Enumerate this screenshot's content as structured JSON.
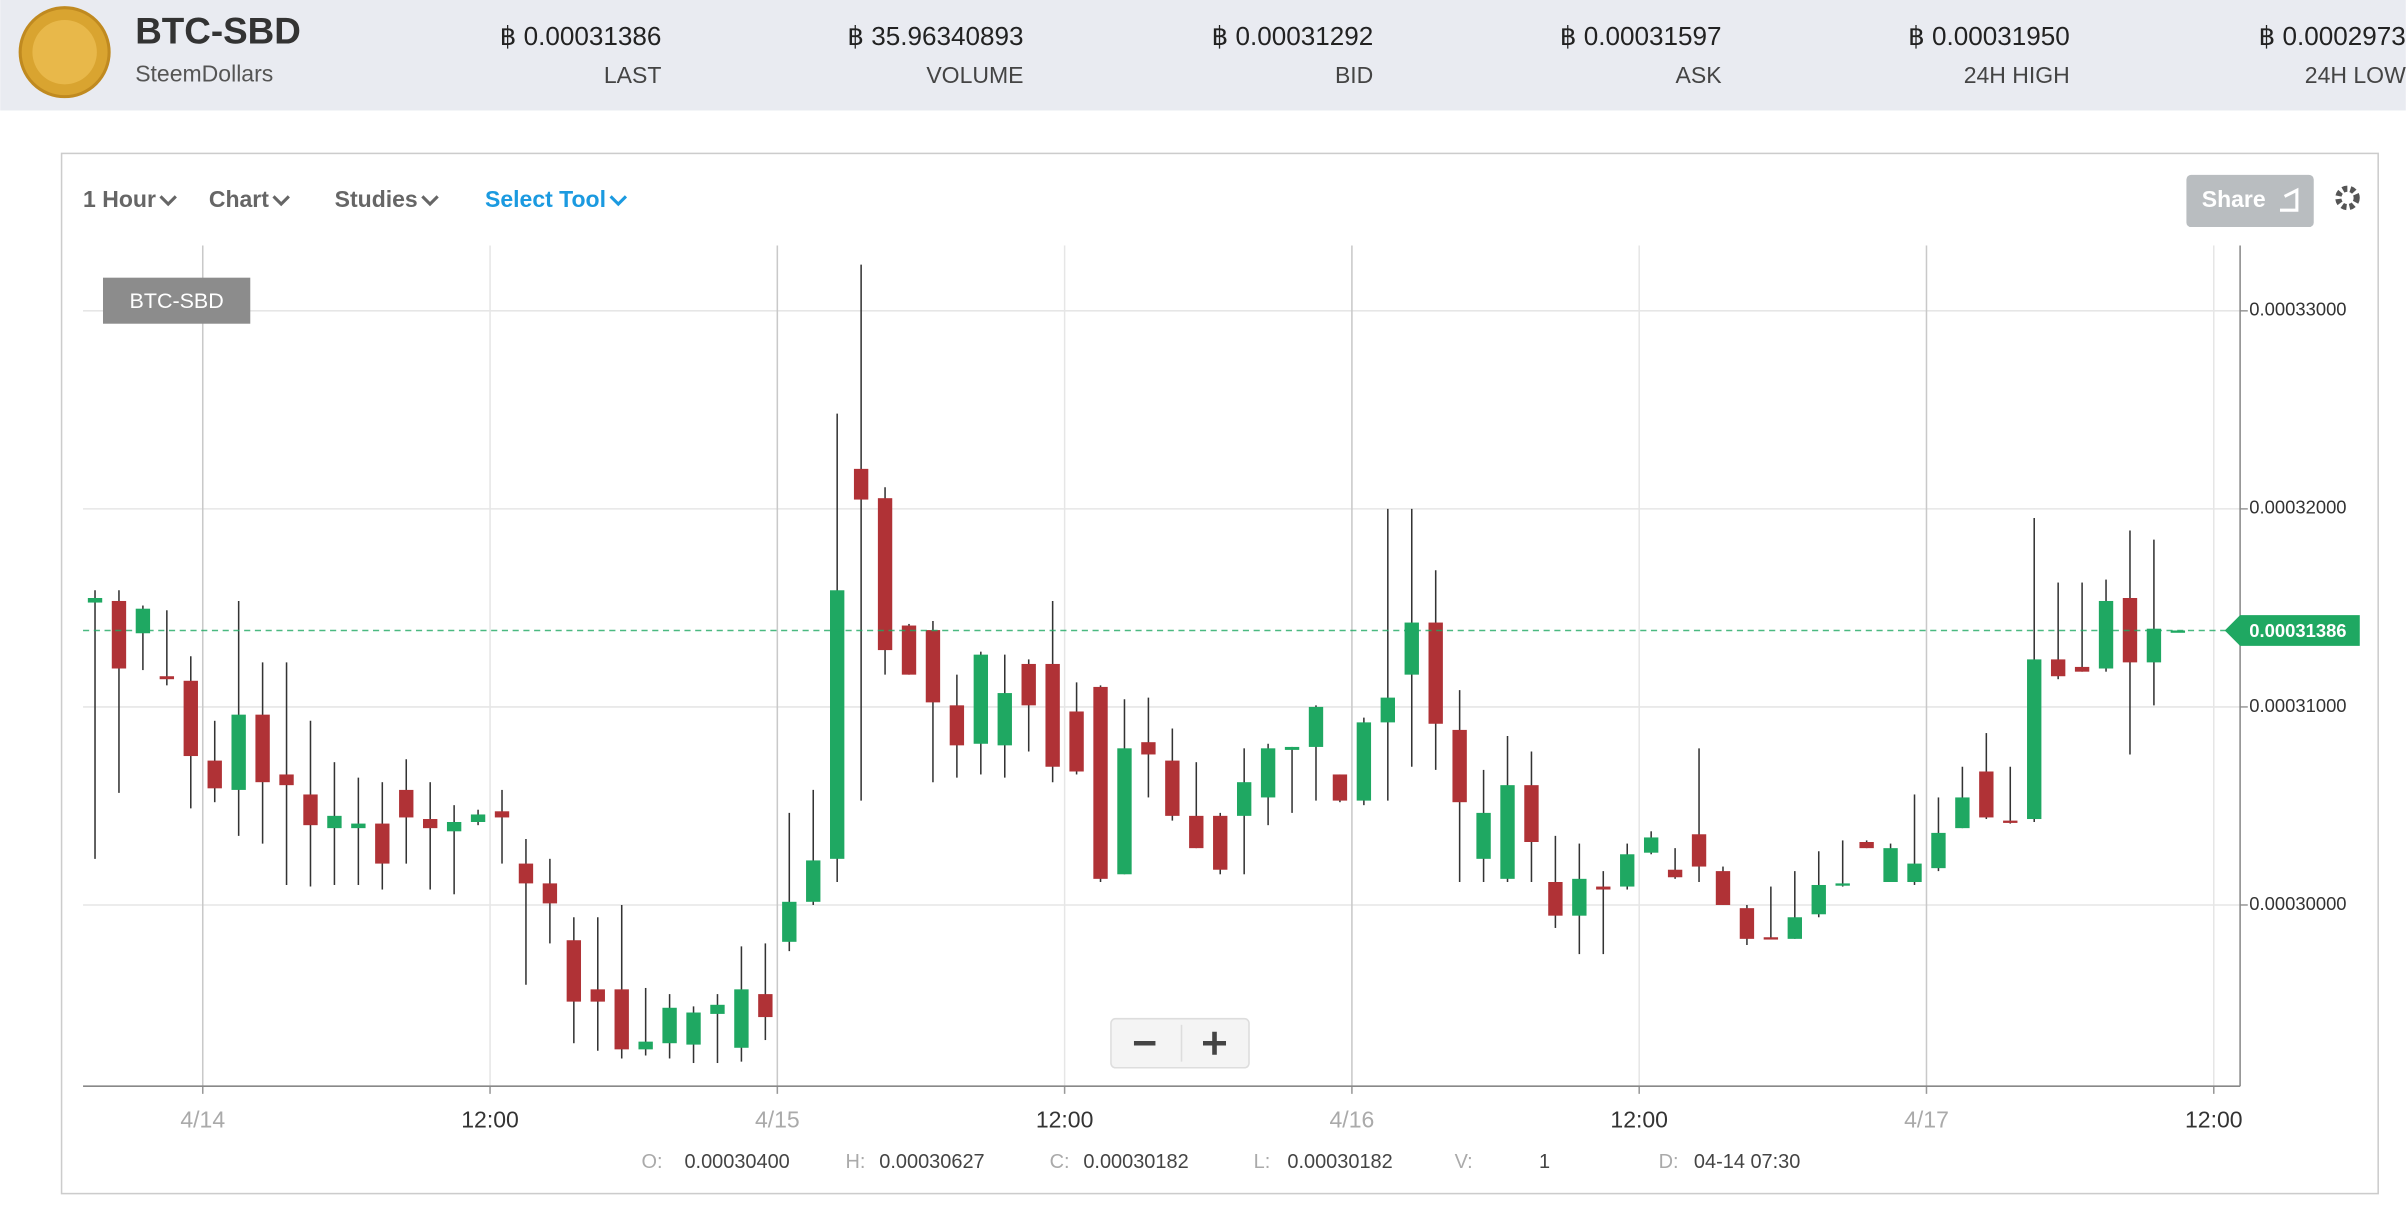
{
  "header": {
    "pair": "BTC-SBD",
    "name": "SteemDollars",
    "stats": [
      {
        "value": "฿ 0.00031386",
        "label": "LAST"
      },
      {
        "value": "฿ 35.96340893",
        "label": "VOLUME"
      },
      {
        "value": "฿ 0.00031292",
        "label": "BID"
      },
      {
        "value": "฿ 0.00031597",
        "label": "ASK"
      },
      {
        "value": "฿ 0.00031950",
        "label": "24H HIGH"
      },
      {
        "value": "฿ 0.0002973",
        "label": "24H LOW"
      }
    ]
  },
  "toolbar": {
    "items": [
      "1 Hour",
      "Chart",
      "Studies",
      "Select Tool"
    ],
    "share": "Share"
  },
  "legend_box": "BTC-SBD",
  "info": [
    {
      "label": "O:",
      "value": "0.00030400"
    },
    {
      "label": "H:",
      "value": "0.00030627"
    },
    {
      "label": "C:",
      "value": "0.00030182"
    },
    {
      "label": "L:",
      "value": "0.00030182"
    },
    {
      "label": "V:",
      "value": "1"
    },
    {
      "label": "D:",
      "value": "04-14 07:30"
    }
  ],
  "chart_data": {
    "type": "candlestick",
    "up_color": "#1fa862",
    "down_color": "#b03236",
    "last_price": 0.00031386,
    "last_color": "#1fa862",
    "grid": true,
    "xlim": [
      -0.5,
      89.6
    ],
    "ylim": [
      0.00029085,
      0.0003333
    ],
    "xticks": [
      {
        "value": 4.5,
        "label": "4/14"
      },
      {
        "value": 16.5,
        "label": "12:00"
      },
      {
        "value": 28.5,
        "label": "4/15"
      },
      {
        "value": 40.5,
        "label": "12:00"
      },
      {
        "value": 52.5,
        "label": "4/16"
      },
      {
        "value": 64.5,
        "label": "12:00"
      },
      {
        "value": 76.5,
        "label": "4/17"
      },
      {
        "value": 88.5,
        "label": "12:00"
      }
    ],
    "yticks": [
      {
        "value": 0.0003,
        "label": "0.00030000"
      },
      {
        "value": 0.00031,
        "label": "0.00031000"
      },
      {
        "value": 0.00032,
        "label": "0.00032000"
      },
      {
        "value": 0.00033,
        "label": "0.00033000"
      }
    ],
    "x": [
      0,
      1,
      2,
      3,
      4,
      5,
      6,
      7,
      8,
      9,
      10,
      11,
      12,
      13,
      14,
      15,
      16,
      17,
      18,
      19,
      20,
      21,
      22,
      23,
      24,
      25,
      26,
      27,
      28,
      29,
      30,
      31,
      32,
      33,
      34,
      35,
      36,
      37,
      38,
      39,
      40,
      41,
      42,
      43,
      44,
      45,
      46,
      47,
      48,
      49,
      50,
      51,
      52,
      53,
      54,
      55,
      56,
      57,
      58,
      59,
      60,
      61,
      62,
      63,
      64,
      65,
      66,
      67,
      68,
      69,
      70,
      71,
      72,
      73,
      74,
      75,
      76,
      77,
      78,
      79,
      80,
      81,
      82,
      83,
      84,
      85,
      86,
      87
    ],
    "open": [
      0.00031527,
      0.00031535,
      0.00031372,
      0.00031155,
      0.00031132,
      0.00030729,
      0.00030581,
      0.00030961,
      0.00030659,
      0.00030558,
      0.00030388,
      0.00030388,
      0.00030411,
      0.00030581,
      0.00030434,
      0.00030372,
      0.00030419,
      0.00030473,
      0.00030209,
      0.00030109,
      0.00029822,
      0.00029574,
      0.00029574,
      0.00029271,
      0.00029302,
      0.00029295,
      0.0002945,
      0.00029279,
      0.0002955,
      0.00029814,
      0.00030016,
      0.00030233,
      0.00032202,
      0.00032054,
      0.00031411,
      0.00031388,
      0.00031008,
      0.00030814,
      0.00030806,
      0.00031217,
      0.00031217,
      0.00030977,
      0.00031101,
      0.00030155,
      0.00030822,
      0.00030729,
      0.0003045,
      0.0003045,
      0.0003045,
      0.00030543,
      0.00030783,
      0.00030798,
      0.00030659,
      0.00030527,
      0.00030922,
      0.00031163,
      0.00031426,
      0.00030884,
      0.00030233,
      0.00030132,
      0.00030605,
      0.00030116,
      0.00029946,
      0.00030093,
      0.00030093,
      0.00030264,
      0.00030178,
      0.00030357,
      0.00030171,
      0.00029984,
      0.00029837,
      0.00029829,
      0.00029953,
      0.00030101,
      0.00030318,
      0.00030116,
      0.00030116,
      0.00030186,
      0.00030388,
      0.00030674,
      0.00030426,
      0.00030434,
      0.0003124,
      0.00031202,
      0.00031194,
      0.0003155,
      0.00031225,
      0.00031386
    ],
    "high": [
      0.00031589,
      0.00031589,
      0.00031512,
      0.00031488,
      0.00031256,
      0.0003093,
      0.00031535,
      0.00031225,
      0.00031225,
      0.0003093,
      0.00030721,
      0.00030643,
      0.0003062,
      0.00030736,
      0.0003062,
      0.00030504,
      0.00030481,
      0.00030581,
      0.00030333,
      0.00030233,
      0.00029938,
      0.00029938,
      0.0003,
      0.00029581,
      0.0002955,
      0.00029488,
      0.0002955,
      0.00029791,
      0.00029806,
      0.00030465,
      0.00030581,
      0.00032481,
      0.00033233,
      0.00032109,
      0.00031419,
      0.00031434,
      0.00031163,
      0.00031279,
      0.00031264,
      0.0003124,
      0.00031535,
      0.00031124,
      0.00031109,
      0.00031039,
      0.00031047,
      0.00030891,
      0.00030721,
      0.00030465,
      0.00030791,
      0.00030814,
      0.00030798,
      0.00031008,
      0.00030659,
      0.00030946,
      0.00032,
      0.00032,
      0.0003169,
      0.00031085,
      0.00030682,
      0.00030853,
      0.00030775,
      0.00030349,
      0.0003031,
      0.00030171,
      0.0003031,
      0.00030372,
      0.00030287,
      0.00030791,
      0.00030194,
      0.0003,
      0.00030093,
      0.00030171,
      0.00030271,
      0.00030326,
      0.00030326,
      0.0003031,
      0.00030558,
      0.00030543,
      0.00030698,
      0.00030868,
      0.00030698,
      0.00031954,
      0.00031628,
      0.00031628,
      0.00031643,
      0.00031891,
      0.00031845,
      0.00031386
    ],
    "low": [
      0.00030233,
      0.00030566,
      0.00031186,
      0.00031109,
      0.00030488,
      0.00030519,
      0.00030349,
      0.0003031,
      0.00030101,
      0.00030093,
      0.00030101,
      0.00030101,
      0.00030078,
      0.00030209,
      0.00030078,
      0.00030054,
      0.00030403,
      0.00030209,
      0.00029597,
      0.00029806,
      0.00029302,
      0.00029264,
      0.00029225,
      0.0002924,
      0.00029225,
      0.00029202,
      0.00029202,
      0.00029209,
      0.00029318,
      0.00029767,
      0.0003,
      0.00030116,
      0.00030527,
      0.00031163,
      0.00031163,
      0.0003062,
      0.00030643,
      0.00030659,
      0.00030643,
      0.00030775,
      0.0003062,
      0.00030659,
      0.00030116,
      0.00030155,
      0.00030543,
      0.00030426,
      0.00030287,
      0.00030155,
      0.00030155,
      0.00030403,
      0.00030465,
      0.00030527,
      0.00030519,
      0.00030504,
      0.00030527,
      0.00030698,
      0.00030682,
      0.00030116,
      0.00030116,
      0.00030116,
      0.00030116,
      0.00029884,
      0.00029752,
      0.00029752,
      0.00030078,
      0.00030256,
      0.00030132,
      0.00030116,
      0.0003,
      0.00029798,
      0.00029829,
      0.00029829,
      0.00029938,
      0.00030093,
      0.00030287,
      0.00030116,
      0.00030101,
      0.00030171,
      0.00030388,
      0.00030434,
      0.00030411,
      0.00030419,
      0.0003114,
      0.00031178,
      0.00031178,
      0.0003076,
      0.00031008,
      0.00031386
    ],
    "close": [
      0.0003155,
      0.00031194,
      0.00031496,
      0.0003114,
      0.00030752,
      0.00030589,
      0.00030961,
      0.0003062,
      0.00030605,
      0.00030403,
      0.0003045,
      0.00030411,
      0.00030209,
      0.00030442,
      0.00030388,
      0.00030419,
      0.00030457,
      0.00030442,
      0.00030109,
      0.00030008,
      0.00029512,
      0.00029512,
      0.00029271,
      0.0002931,
      0.00029481,
      0.00029457,
      0.00029496,
      0.00029574,
      0.00029434,
      0.00030016,
      0.00030225,
      0.00031589,
      0.00032047,
      0.00031287,
      0.00031163,
      0.00031023,
      0.00030806,
      0.00031264,
      0.0003107,
      0.00031008,
      0.00030698,
      0.00030674,
      0.00030132,
      0.00030791,
      0.0003076,
      0.0003045,
      0.00030287,
      0.00030178,
      0.0003062,
      0.00030791,
      0.00030798,
      0.00031,
      0.00030527,
      0.00030922,
      0.00031047,
      0.00031426,
      0.00030915,
      0.00030519,
      0.00030465,
      0.00030605,
      0.00030318,
      0.00029946,
      0.00030132,
      0.00030078,
      0.00030256,
      0.00030341,
      0.0003014,
      0.00030194,
      0.0003,
      0.00029829,
      0.00029829,
      0.00029938,
      0.00030101,
      0.00030109,
      0.00030287,
      0.00030287,
      0.00030209,
      0.00030364,
      0.00030543,
      0.00030442,
      0.00030419,
      0.0003124,
      0.00031155,
      0.00031178,
      0.00031535,
      0.00031225,
      0.00031395,
      0.00031386
    ]
  }
}
